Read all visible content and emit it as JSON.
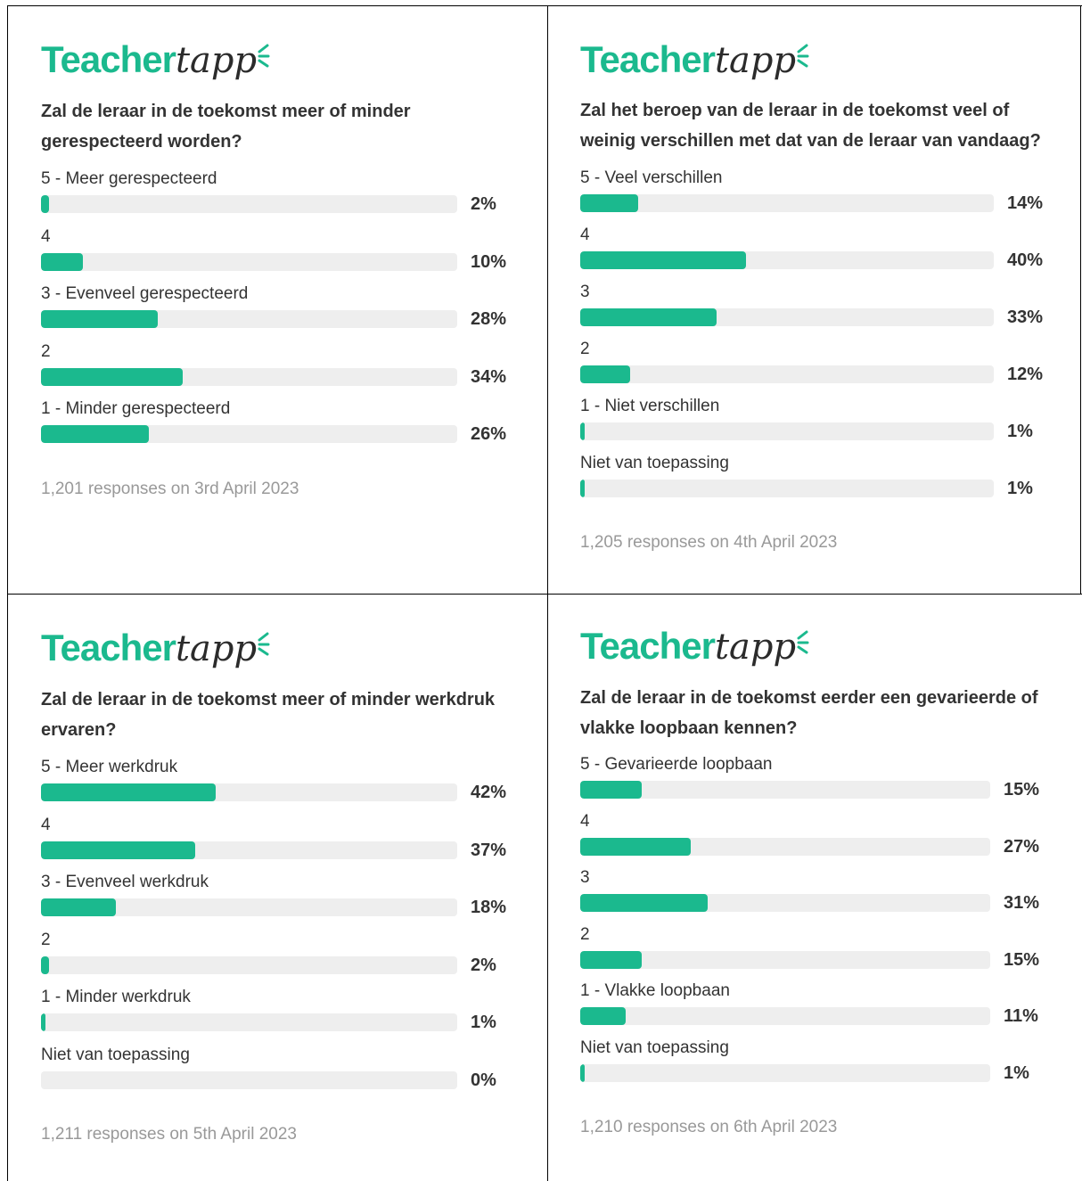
{
  "logo": [
    "Teacher",
    "tapp"
  ],
  "chart_data": [
    {
      "type": "bar",
      "orientation": "horizontal",
      "color": "#1bb98e",
      "xlim": [
        0,
        100
      ],
      "title": "Zal de leraar in de toekomst meer of minder gerespecteerd worden?",
      "categories": [
        "5 - Meer gerespecteerd",
        "4",
        "3 - Evenveel gerespecteerd",
        "2",
        "1 - Minder gerespecteerd"
      ],
      "values": [
        2,
        10,
        28,
        34,
        26
      ],
      "value_labels": [
        "2%",
        "10%",
        "28%",
        "34%",
        "26%"
      ],
      "footnote": "1,201 responses on 3rd April 2023"
    },
    {
      "type": "bar",
      "orientation": "horizontal",
      "color": "#1bb98e",
      "xlim": [
        0,
        100
      ],
      "title": "Zal het beroep van de leraar in de toekomst veel of weinig verschillen met dat van de leraar van vandaag?",
      "categories": [
        "5 - Veel verschillen",
        "4",
        "3",
        "2",
        "1 - Niet verschillen",
        "Niet van toepassing"
      ],
      "values": [
        14,
        40,
        33,
        12,
        1,
        1
      ],
      "value_labels": [
        "14%",
        "40%",
        "33%",
        "12%",
        "1%",
        "1%"
      ],
      "footnote": "1,205 responses on 4th April 2023"
    },
    {
      "type": "bar",
      "orientation": "horizontal",
      "color": "#1bb98e",
      "xlim": [
        0,
        100
      ],
      "title": "Zal de leraar in de toekomst meer of minder werkdruk ervaren?",
      "categories": [
        "5 - Meer werkdruk",
        "4",
        "3 - Evenveel werkdruk",
        "2",
        "1 - Minder werkdruk",
        "Niet van toepassing"
      ],
      "values": [
        42,
        37,
        18,
        2,
        1,
        0
      ],
      "value_labels": [
        "42%",
        "37%",
        "18%",
        "2%",
        "1%",
        "0%"
      ],
      "footnote": "1,211 responses on 5th April 2023"
    },
    {
      "type": "bar",
      "orientation": "horizontal",
      "color": "#1bb98e",
      "xlim": [
        0,
        100
      ],
      "title": "Zal de leraar in de toekomst eerder een gevarieerde of vlakke loopbaan kennen?",
      "categories": [
        "5 - Gevarieerde loopbaan",
        "4",
        "3",
        "2",
        "1 - Vlakke loopbaan",
        "Niet van toepassing"
      ],
      "values": [
        15,
        27,
        31,
        15,
        11,
        1
      ],
      "value_labels": [
        "15%",
        "27%",
        "31%",
        "15%",
        "11%",
        "1%"
      ],
      "footnote": "1,210 responses on 6th April 2023"
    }
  ]
}
